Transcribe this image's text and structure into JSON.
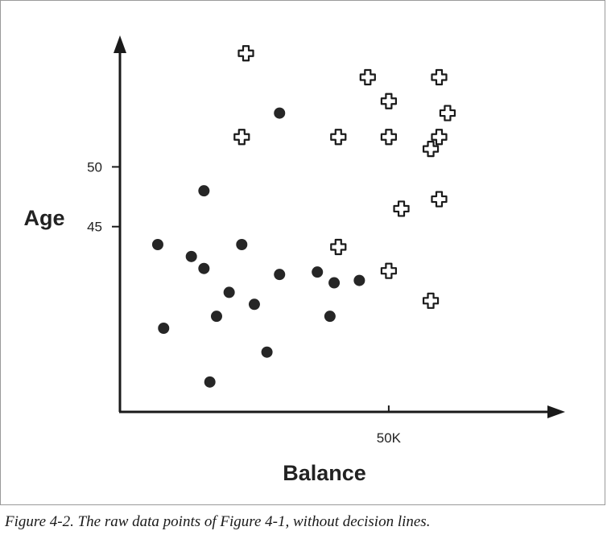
{
  "caption": "Figure 4-2. The raw data points of Figure 4-1, without decision lines.",
  "colors": {
    "axis": "#1a1a1a",
    "dot": "#262626",
    "cross_fill": "#ffffff",
    "cross_stroke": "#1a1a1a"
  },
  "chart_data": {
    "type": "scatter",
    "xlabel": "Balance",
    "ylabel": "Age",
    "x_ticks": [
      {
        "value": 50,
        "label": "50K"
      }
    ],
    "y_ticks": [
      {
        "value": 50,
        "label": "50"
      },
      {
        "value": 45,
        "label": "45"
      }
    ],
    "xlim": [
      18,
      71
    ],
    "ylim": [
      29.5,
      61
    ],
    "grid": false,
    "legend": "none",
    "series": [
      {
        "marker": "dot",
        "points": [
          [
            22.5,
            43.5
          ],
          [
            23.2,
            36.5
          ],
          [
            26.5,
            42.5
          ],
          [
            28,
            48
          ],
          [
            28,
            41.5
          ],
          [
            28.7,
            32
          ],
          [
            29.5,
            37.5
          ],
          [
            31,
            39.5
          ],
          [
            32.5,
            43.5
          ],
          [
            34,
            38.5
          ],
          [
            35.5,
            34.5
          ],
          [
            37,
            41
          ],
          [
            37,
            54.5
          ],
          [
            41.5,
            41.2
          ],
          [
            43,
            37.5
          ],
          [
            43.5,
            40.3
          ],
          [
            46.5,
            40.5
          ]
        ]
      },
      {
        "marker": "cross",
        "points": [
          [
            33,
            59.5
          ],
          [
            32.5,
            52.5
          ],
          [
            44,
            52.5
          ],
          [
            44,
            43.3
          ],
          [
            47.5,
            57.5
          ],
          [
            50,
            55.5
          ],
          [
            50,
            52.5
          ],
          [
            50,
            41.3
          ],
          [
            51.5,
            46.5
          ],
          [
            55,
            51.5
          ],
          [
            55,
            38.8
          ],
          [
            56,
            57.5
          ],
          [
            56,
            52.5
          ],
          [
            56,
            47.3
          ],
          [
            57,
            54.5
          ]
        ]
      }
    ]
  }
}
